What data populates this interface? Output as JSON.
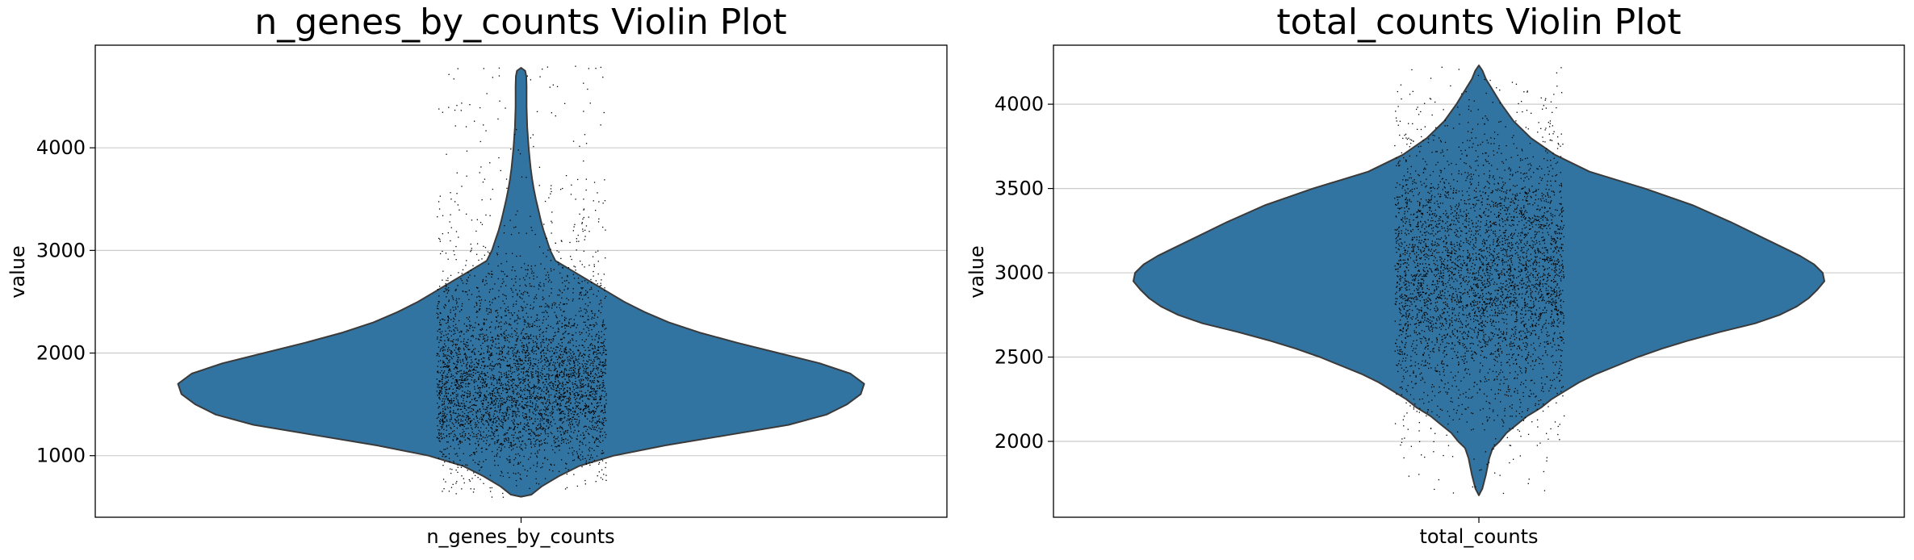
{
  "chart_data": [
    {
      "type": "violin",
      "title": "n_genes_by_counts Violin Plot",
      "xlabel": "",
      "ylabel": "value",
      "categories": [
        "n_genes_by_counts"
      ],
      "ylim": [
        400,
        5000
      ],
      "yticks": [
        1000,
        2000,
        3000,
        4000
      ],
      "grid": "horizontal",
      "color": "#3274a1",
      "point_color": "#000000",
      "distribution": {
        "min": 600,
        "mode": 1700,
        "max": 4800
      },
      "density": [
        [
          600,
          0.0
        ],
        [
          620,
          0.03
        ],
        [
          700,
          0.06
        ],
        [
          800,
          0.11
        ],
        [
          900,
          0.17
        ],
        [
          1000,
          0.27
        ],
        [
          1100,
          0.42
        ],
        [
          1200,
          0.6
        ],
        [
          1300,
          0.78
        ],
        [
          1400,
          0.89
        ],
        [
          1500,
          0.95
        ],
        [
          1600,
          0.99
        ],
        [
          1700,
          1.0
        ],
        [
          1800,
          0.96
        ],
        [
          1900,
          0.87
        ],
        [
          2000,
          0.75
        ],
        [
          2100,
          0.63
        ],
        [
          2200,
          0.52
        ],
        [
          2300,
          0.43
        ],
        [
          2400,
          0.36
        ],
        [
          2500,
          0.3
        ],
        [
          2600,
          0.25
        ],
        [
          2700,
          0.2
        ],
        [
          2800,
          0.15
        ],
        [
          2900,
          0.1
        ],
        [
          3000,
          0.085
        ],
        [
          3100,
          0.075
        ],
        [
          3200,
          0.065
        ],
        [
          3300,
          0.057
        ],
        [
          3400,
          0.05
        ],
        [
          3500,
          0.043
        ],
        [
          3600,
          0.037
        ],
        [
          3700,
          0.032
        ],
        [
          3800,
          0.028
        ],
        [
          3900,
          0.025
        ],
        [
          4000,
          0.022
        ],
        [
          4200,
          0.018
        ],
        [
          4400,
          0.016
        ],
        [
          4600,
          0.016
        ],
        [
          4700,
          0.015
        ],
        [
          4750,
          0.012
        ],
        [
          4780,
          0.0
        ]
      ],
      "sample_range": [
        600,
        4800
      ]
    },
    {
      "type": "violin",
      "title": "total_counts Violin Plot",
      "xlabel": "",
      "ylabel": "value",
      "categories": [
        "total_counts"
      ],
      "ylim": [
        1550,
        4350
      ],
      "yticks": [
        2000,
        2500,
        3000,
        3500,
        4000
      ],
      "grid": "horizontal",
      "color": "#3274a1",
      "point_color": "#000000",
      "distribution": {
        "min": 1680,
        "mode": 2950,
        "max": 4230
      },
      "density": [
        [
          1680,
          0.0
        ],
        [
          1720,
          0.01
        ],
        [
          1800,
          0.02
        ],
        [
          1900,
          0.03
        ],
        [
          1960,
          0.04
        ],
        [
          2000,
          0.06
        ],
        [
          2050,
          0.08
        ],
        [
          2100,
          0.11
        ],
        [
          2150,
          0.14
        ],
        [
          2200,
          0.18
        ],
        [
          2250,
          0.21
        ],
        [
          2300,
          0.25
        ],
        [
          2350,
          0.29
        ],
        [
          2400,
          0.34
        ],
        [
          2450,
          0.4
        ],
        [
          2500,
          0.46
        ],
        [
          2550,
          0.53
        ],
        [
          2600,
          0.61
        ],
        [
          2650,
          0.7
        ],
        [
          2700,
          0.8
        ],
        [
          2750,
          0.87
        ],
        [
          2800,
          0.92
        ],
        [
          2850,
          0.955
        ],
        [
          2900,
          0.98
        ],
        [
          2950,
          1.0
        ],
        [
          3000,
          0.995
        ],
        [
          3050,
          0.97
        ],
        [
          3100,
          0.93
        ],
        [
          3150,
          0.88
        ],
        [
          3200,
          0.83
        ],
        [
          3300,
          0.73
        ],
        [
          3400,
          0.62
        ],
        [
          3500,
          0.48
        ],
        [
          3600,
          0.32
        ],
        [
          3700,
          0.22
        ],
        [
          3800,
          0.15
        ],
        [
          3900,
          0.1
        ],
        [
          4000,
          0.065
        ],
        [
          4100,
          0.035
        ],
        [
          4150,
          0.02
        ],
        [
          4200,
          0.01
        ],
        [
          4230,
          0.0
        ]
      ],
      "sample_range": [
        1680,
        4230
      ]
    }
  ]
}
